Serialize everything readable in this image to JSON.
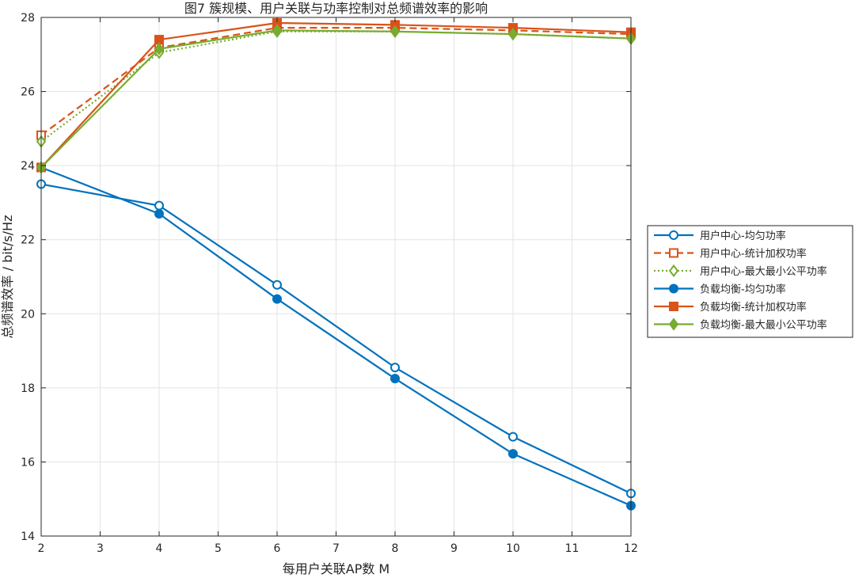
{
  "chart_data": {
    "type": "line",
    "title": "图7 簇规模、用户关联与功率控制对总频谱效率的影响",
    "xlabel": "每用户关联AP数 M",
    "ylabel": "总频谱效率 / bit/s/Hz",
    "xlim": [
      2,
      12
    ],
    "ylim": [
      14,
      28
    ],
    "xticks": [
      2,
      3,
      4,
      5,
      6,
      7,
      8,
      9,
      10,
      11,
      12
    ],
    "yticks": [
      14,
      16,
      18,
      20,
      22,
      24,
      26,
      28
    ],
    "grid": true,
    "legend_position": "outside-right",
    "x": [
      2,
      4,
      6,
      8,
      10,
      12
    ],
    "series": [
      {
        "name": "用户中心-均匀功率",
        "values": [
          23.5,
          22.92,
          20.78,
          18.55,
          16.68,
          15.15
        ],
        "color": "#0072BD",
        "line": "solid",
        "marker": "circle-open"
      },
      {
        "name": "用户中心-统计加权功率",
        "values": [
          24.82,
          27.18,
          27.72,
          27.72,
          27.65,
          27.55
        ],
        "color": "#D95319",
        "line": "dashed",
        "marker": "square-open"
      },
      {
        "name": "用户中心-最大最小公平功率",
        "values": [
          24.65,
          27.05,
          27.62,
          27.62,
          27.55,
          27.43
        ],
        "color": "#77AC30",
        "line": "dotted",
        "marker": "diamond-open"
      },
      {
        "name": "负载均衡-均匀功率",
        "values": [
          23.95,
          22.7,
          20.4,
          18.25,
          16.22,
          14.82
        ],
        "color": "#0072BD",
        "line": "solid",
        "marker": "circle-filled"
      },
      {
        "name": "负载均衡-统计加权功率",
        "values": [
          23.95,
          27.4,
          27.85,
          27.8,
          27.72,
          27.6
        ],
        "color": "#D95319",
        "line": "solid",
        "marker": "square-filled"
      },
      {
        "name": "负载均衡-最大最小公平功率",
        "values": [
          23.95,
          27.15,
          27.65,
          27.62,
          27.55,
          27.43
        ],
        "color": "#77AC30",
        "line": "solid",
        "marker": "diamond-filled"
      }
    ]
  }
}
